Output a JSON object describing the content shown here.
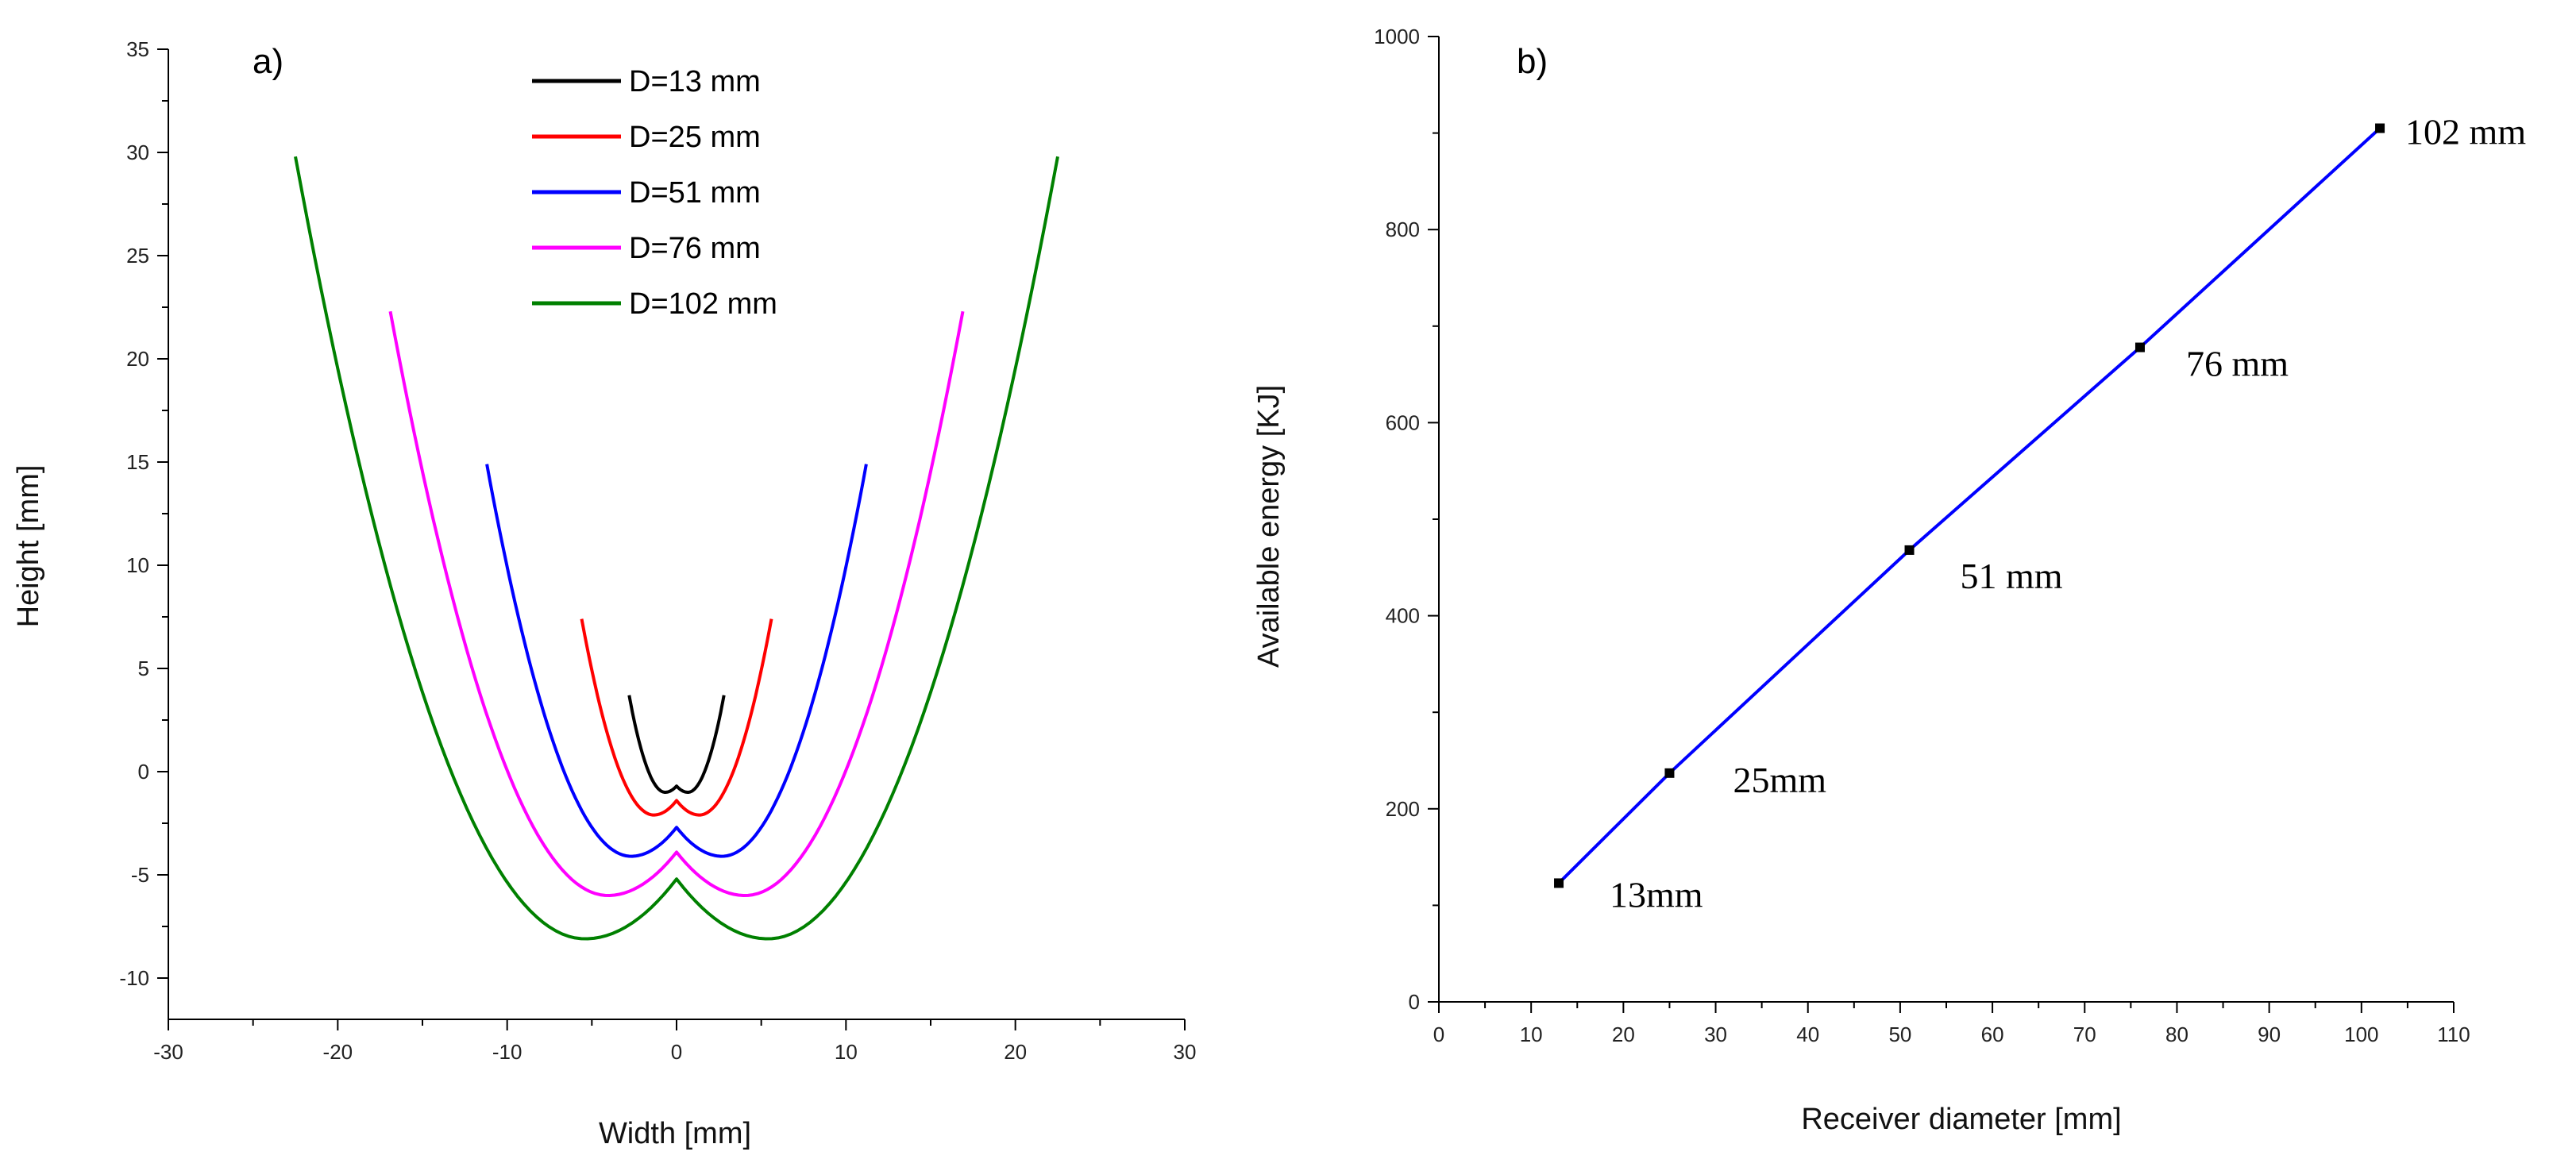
{
  "chart_data": [
    {
      "type": "line",
      "panel_label": "a)",
      "xlabel": "Width [mm]",
      "ylabel": "Height [mm]",
      "xlim": [
        -30,
        30
      ],
      "ylim": [
        -12,
        35
      ],
      "x_ticks": [
        -30,
        -20,
        -10,
        0,
        10,
        20,
        30
      ],
      "y_ticks": [
        -10,
        -5,
        0,
        5,
        10,
        15,
        20,
        25,
        30,
        35
      ],
      "x_tick_labels": [
        "-30",
        "-20",
        "-10",
        "0",
        "10",
        "20",
        "30"
      ],
      "y_tick_labels": [
        "-10",
        "-5",
        "0",
        "5",
        "10",
        "15",
        "20",
        "25",
        "30",
        "35"
      ],
      "legend_position": "top-center",
      "series": [
        {
          "name": "D=13 mm",
          "color": "#000000",
          "half_width": 2.8,
          "top": 3.7,
          "bottom": -1.0,
          "cusp": -0.7
        },
        {
          "name": "D=25 mm",
          "color": "#ff0000",
          "half_width": 5.6,
          "top": 7.4,
          "bottom": -2.1,
          "cusp": -1.4
        },
        {
          "name": "D=51 mm",
          "color": "#0000ff",
          "half_width": 11.2,
          "top": 14.9,
          "bottom": -4.1,
          "cusp": -2.7
        },
        {
          "name": "D=76 mm",
          "color": "#ff00ff",
          "half_width": 16.9,
          "top": 22.3,
          "bottom": -6.0,
          "cusp": -3.9
        },
        {
          "name": "D=102 mm",
          "color": "#008000",
          "half_width": 22.5,
          "top": 29.8,
          "bottom": -8.1,
          "cusp": -5.2
        }
      ]
    },
    {
      "type": "line",
      "panel_label": "b)",
      "xlabel": "Receiver diameter [mm]",
      "ylabel": "Available energy [KJ]",
      "xlim": [
        0,
        110
      ],
      "ylim": [
        0,
        1000
      ],
      "x_ticks": [
        0,
        10,
        20,
        30,
        40,
        50,
        60,
        70,
        80,
        90,
        100,
        110
      ],
      "y_ticks": [
        0,
        200,
        400,
        600,
        800,
        1000
      ],
      "x_tick_labels": [
        "0",
        "10",
        "20",
        "30",
        "40",
        "50",
        "60",
        "70",
        "80",
        "90",
        "100",
        "110"
      ],
      "y_tick_labels": [
        "0",
        "200",
        "400",
        "600",
        "800",
        "1000"
      ],
      "line_color": "#0000ff",
      "x": [
        13,
        25,
        51,
        76,
        102
      ],
      "values": [
        123,
        237,
        468,
        678,
        905
      ],
      "annotations": [
        "13mm",
        "25mm",
        "51 mm",
        "76 mm",
        "102 mm"
      ]
    }
  ]
}
